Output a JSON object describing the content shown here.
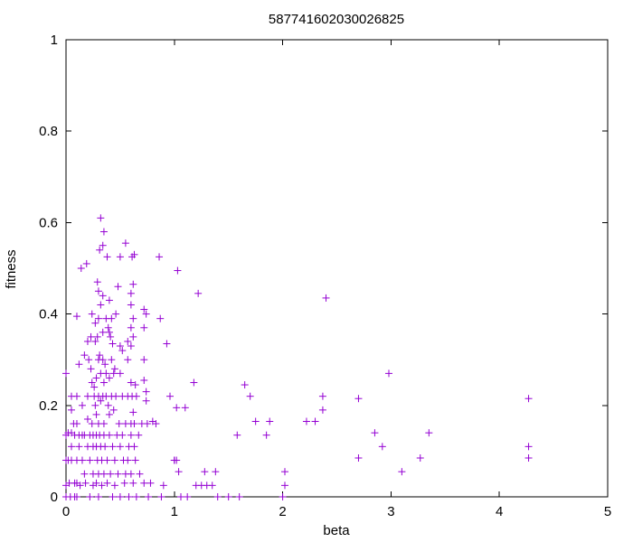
{
  "chart_data": {
    "type": "scatter",
    "title": "58774160203002682​5",
    "xlabel": "beta",
    "ylabel": "fitness",
    "xlim": [
      0,
      5
    ],
    "ylim": [
      0,
      1
    ],
    "x_ticks": [
      "0",
      "1",
      "2",
      "3",
      "4",
      "5"
    ],
    "y_ticks": [
      "0",
      "0.2",
      "0.4",
      "0.6",
      "0.8",
      "1"
    ],
    "grid": false,
    "legend": "none",
    "marker": "+",
    "color": "#9400d3",
    "series": [
      {
        "points": [
          [
            0.0,
            0.27
          ],
          [
            0.0,
            0.135
          ],
          [
            0.0,
            0.08
          ],
          [
            0.0,
            0.025
          ],
          [
            0.0,
            0.0
          ],
          [
            0.02,
            0.14
          ],
          [
            0.02,
            0.08
          ],
          [
            0.03,
            0.03
          ],
          [
            0.04,
            0.0
          ],
          [
            0.05,
            0.22
          ],
          [
            0.05,
            0.19
          ],
          [
            0.05,
            0.14
          ],
          [
            0.05,
            0.11
          ],
          [
            0.05,
            0.08
          ],
          [
            0.07,
            0.16
          ],
          [
            0.08,
            0.135
          ],
          [
            0.08,
            0.03
          ],
          [
            0.08,
            0.0
          ],
          [
            0.1,
            0.395
          ],
          [
            0.1,
            0.22
          ],
          [
            0.1,
            0.16
          ],
          [
            0.1,
            0.08
          ],
          [
            0.1,
            0.03
          ],
          [
            0.1,
            0.0
          ],
          [
            0.12,
            0.29
          ],
          [
            0.12,
            0.135
          ],
          [
            0.12,
            0.11
          ],
          [
            0.13,
            0.025
          ],
          [
            0.14,
            0.5
          ],
          [
            0.15,
            0.2
          ],
          [
            0.15,
            0.135
          ],
          [
            0.15,
            0.08
          ],
          [
            0.17,
            0.31
          ],
          [
            0.17,
            0.135
          ],
          [
            0.17,
            0.05
          ],
          [
            0.18,
            0.03
          ],
          [
            0.19,
            0.51
          ],
          [
            0.2,
            0.34
          ],
          [
            0.2,
            0.22
          ],
          [
            0.2,
            0.17
          ],
          [
            0.2,
            0.11
          ],
          [
            0.21,
            0.3
          ],
          [
            0.22,
            0.135
          ],
          [
            0.22,
            0.08
          ],
          [
            0.22,
            0.0
          ],
          [
            0.23,
            0.35
          ],
          [
            0.23,
            0.28
          ],
          [
            0.24,
            0.4
          ],
          [
            0.24,
            0.25
          ],
          [
            0.24,
            0.16
          ],
          [
            0.25,
            0.135
          ],
          [
            0.25,
            0.11
          ],
          [
            0.25,
            0.05
          ],
          [
            0.25,
            0.025
          ],
          [
            0.26,
            0.24
          ],
          [
            0.26,
            0.22
          ],
          [
            0.27,
            0.38
          ],
          [
            0.27,
            0.34
          ],
          [
            0.27,
            0.2
          ],
          [
            0.28,
            0.26
          ],
          [
            0.28,
            0.18
          ],
          [
            0.28,
            0.135
          ],
          [
            0.28,
            0.11
          ],
          [
            0.28,
            0.03
          ],
          [
            0.29,
            0.47
          ],
          [
            0.29,
            0.35
          ],
          [
            0.29,
            0.08
          ],
          [
            0.3,
            0.45
          ],
          [
            0.3,
            0.39
          ],
          [
            0.3,
            0.3
          ],
          [
            0.3,
            0.22
          ],
          [
            0.3,
            0.16
          ],
          [
            0.3,
            0.05
          ],
          [
            0.3,
            0.0
          ],
          [
            0.31,
            0.54
          ],
          [
            0.31,
            0.31
          ],
          [
            0.31,
            0.135
          ],
          [
            0.32,
            0.61
          ],
          [
            0.32,
            0.42
          ],
          [
            0.32,
            0.27
          ],
          [
            0.32,
            0.21
          ],
          [
            0.32,
            0.11
          ],
          [
            0.33,
            0.08
          ],
          [
            0.33,
            0.025
          ],
          [
            0.34,
            0.55
          ],
          [
            0.34,
            0.44
          ],
          [
            0.34,
            0.36
          ],
          [
            0.34,
            0.3
          ],
          [
            0.34,
            0.22
          ],
          [
            0.35,
            0.58
          ],
          [
            0.35,
            0.25
          ],
          [
            0.35,
            0.16
          ],
          [
            0.35,
            0.135
          ],
          [
            0.35,
            0.05
          ],
          [
            0.36,
            0.29
          ],
          [
            0.36,
            0.11
          ],
          [
            0.37,
            0.39
          ],
          [
            0.37,
            0.27
          ],
          [
            0.37,
            0.22
          ],
          [
            0.38,
            0.525
          ],
          [
            0.38,
            0.08
          ],
          [
            0.38,
            0.03
          ],
          [
            0.39,
            0.37
          ],
          [
            0.39,
            0.2
          ],
          [
            0.4,
            0.43
          ],
          [
            0.4,
            0.36
          ],
          [
            0.4,
            0.26
          ],
          [
            0.4,
            0.18
          ],
          [
            0.4,
            0.135
          ],
          [
            0.41,
            0.35
          ],
          [
            0.41,
            0.05
          ],
          [
            0.42,
            0.39
          ],
          [
            0.42,
            0.3
          ],
          [
            0.42,
            0.22
          ],
          [
            0.43,
            0.335
          ],
          [
            0.43,
            0.11
          ],
          [
            0.43,
            0.0
          ],
          [
            0.44,
            0.27
          ],
          [
            0.44,
            0.19
          ],
          [
            0.45,
            0.28
          ],
          [
            0.45,
            0.08
          ],
          [
            0.45,
            0.025
          ],
          [
            0.46,
            0.4
          ],
          [
            0.46,
            0.22
          ],
          [
            0.47,
            0.135
          ],
          [
            0.48,
            0.46
          ],
          [
            0.48,
            0.05
          ],
          [
            0.49,
            0.16
          ],
          [
            0.5,
            0.525
          ],
          [
            0.5,
            0.33
          ],
          [
            0.5,
            0.27
          ],
          [
            0.5,
            0.11
          ],
          [
            0.5,
            0.0
          ],
          [
            0.52,
            0.32
          ],
          [
            0.52,
            0.22
          ],
          [
            0.52,
            0.135
          ],
          [
            0.53,
            0.08
          ],
          [
            0.54,
            0.03
          ],
          [
            0.55,
            0.555
          ],
          [
            0.55,
            0.16
          ],
          [
            0.55,
            0.05
          ],
          [
            0.57,
            0.34
          ],
          [
            0.57,
            0.3
          ],
          [
            0.57,
            0.22
          ],
          [
            0.57,
            0.08
          ],
          [
            0.58,
            0.11
          ],
          [
            0.58,
            0.0
          ],
          [
            0.6,
            0.445
          ],
          [
            0.6,
            0.42
          ],
          [
            0.6,
            0.37
          ],
          [
            0.6,
            0.33
          ],
          [
            0.6,
            0.25
          ],
          [
            0.6,
            0.16
          ],
          [
            0.6,
            0.135
          ],
          [
            0.6,
            0.05
          ],
          [
            0.61,
            0.525
          ],
          [
            0.61,
            0.22
          ],
          [
            0.62,
            0.465
          ],
          [
            0.62,
            0.39
          ],
          [
            0.62,
            0.35
          ],
          [
            0.62,
            0.185
          ],
          [
            0.62,
            0.03
          ],
          [
            0.63,
            0.53
          ],
          [
            0.63,
            0.16
          ],
          [
            0.63,
            0.11
          ],
          [
            0.64,
            0.245
          ],
          [
            0.64,
            0.08
          ],
          [
            0.65,
            0.22
          ],
          [
            0.65,
            0.0
          ],
          [
            0.67,
            0.135
          ],
          [
            0.68,
            0.05
          ],
          [
            0.7,
            0.16
          ],
          [
            0.72,
            0.41
          ],
          [
            0.72,
            0.37
          ],
          [
            0.72,
            0.3
          ],
          [
            0.72,
            0.255
          ],
          [
            0.72,
            0.03
          ],
          [
            0.74,
            0.4
          ],
          [
            0.74,
            0.23
          ],
          [
            0.74,
            0.21
          ],
          [
            0.75,
            0.16
          ],
          [
            0.76,
            0.0
          ],
          [
            0.78,
            0.03
          ],
          [
            0.8,
            0.165
          ],
          [
            0.83,
            0.16
          ],
          [
            0.86,
            0.525
          ],
          [
            0.87,
            0.39
          ],
          [
            0.88,
            0.0
          ],
          [
            0.9,
            0.025
          ],
          [
            0.93,
            0.335
          ],
          [
            0.96,
            0.22
          ],
          [
            1.0,
            0.08
          ],
          [
            1.0,
            0.08
          ],
          [
            1.02,
            0.195
          ],
          [
            1.02,
            0.08
          ],
          [
            1.03,
            0.495
          ],
          [
            1.04,
            0.055
          ],
          [
            1.06,
            0.0
          ],
          [
            1.1,
            0.195
          ],
          [
            1.12,
            0.0
          ],
          [
            1.18,
            0.25
          ],
          [
            1.2,
            0.025
          ],
          [
            1.22,
            0.445
          ],
          [
            1.25,
            0.025
          ],
          [
            1.28,
            0.055
          ],
          [
            1.3,
            0.025
          ],
          [
            1.35,
            0.025
          ],
          [
            1.38,
            0.055
          ],
          [
            1.4,
            0.0
          ],
          [
            1.5,
            0.0
          ],
          [
            1.58,
            0.135
          ],
          [
            1.6,
            0.0
          ],
          [
            1.65,
            0.245
          ],
          [
            1.7,
            0.22
          ],
          [
            1.75,
            0.165
          ],
          [
            1.85,
            0.135
          ],
          [
            1.88,
            0.165
          ],
          [
            2.0,
            0.0
          ],
          [
            2.02,
            0.055
          ],
          [
            2.02,
            0.025
          ],
          [
            2.22,
            0.165
          ],
          [
            2.3,
            0.165
          ],
          [
            2.37,
            0.22
          ],
          [
            2.37,
            0.19
          ],
          [
            2.4,
            0.435
          ],
          [
            2.7,
            0.215
          ],
          [
            2.7,
            0.085
          ],
          [
            2.85,
            0.14
          ],
          [
            2.92,
            0.11
          ],
          [
            2.98,
            0.27
          ],
          [
            3.1,
            0.055
          ],
          [
            3.27,
            0.085
          ],
          [
            3.35,
            0.14
          ],
          [
            4.27,
            0.215
          ],
          [
            4.27,
            0.11
          ],
          [
            4.27,
            0.085
          ]
        ]
      }
    ]
  }
}
